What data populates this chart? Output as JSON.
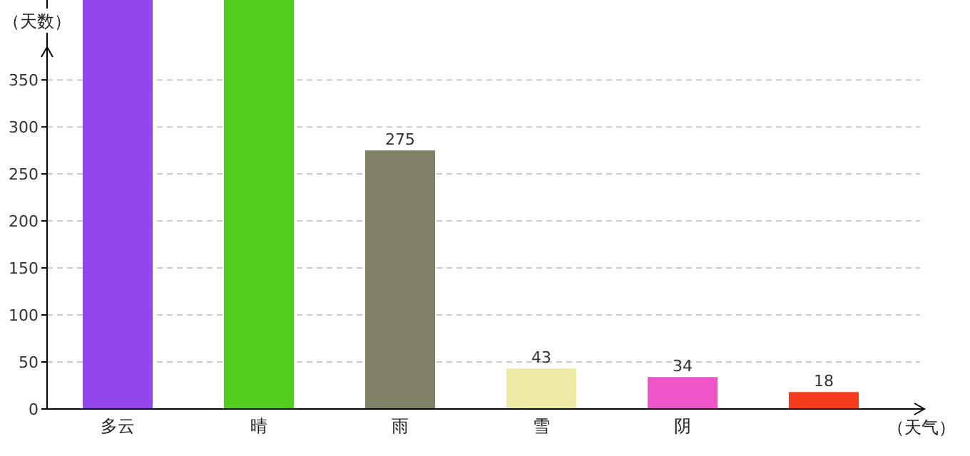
{
  "chart_data": {
    "type": "bar",
    "xlabel": "（天气）",
    "ylabel": "（天数）",
    "categories": [
      "多云",
      "晴",
      "雨",
      "雪",
      "阴",
      null
    ],
    "values": [
      435,
      435,
      275,
      43,
      34,
      18
    ],
    "colors": [
      "#9146ee",
      "#52cf1e",
      "#808066",
      "#eeeba6",
      "#ee55c6",
      "#f53c1e"
    ],
    "value_labels": [
      null,
      null,
      "275",
      "43",
      "34",
      "18"
    ],
    "ylim": [
      0,
      435
    ],
    "yticks": [
      0,
      50,
      100,
      150,
      200,
      250,
      300,
      350
    ],
    "grid": "y"
  }
}
